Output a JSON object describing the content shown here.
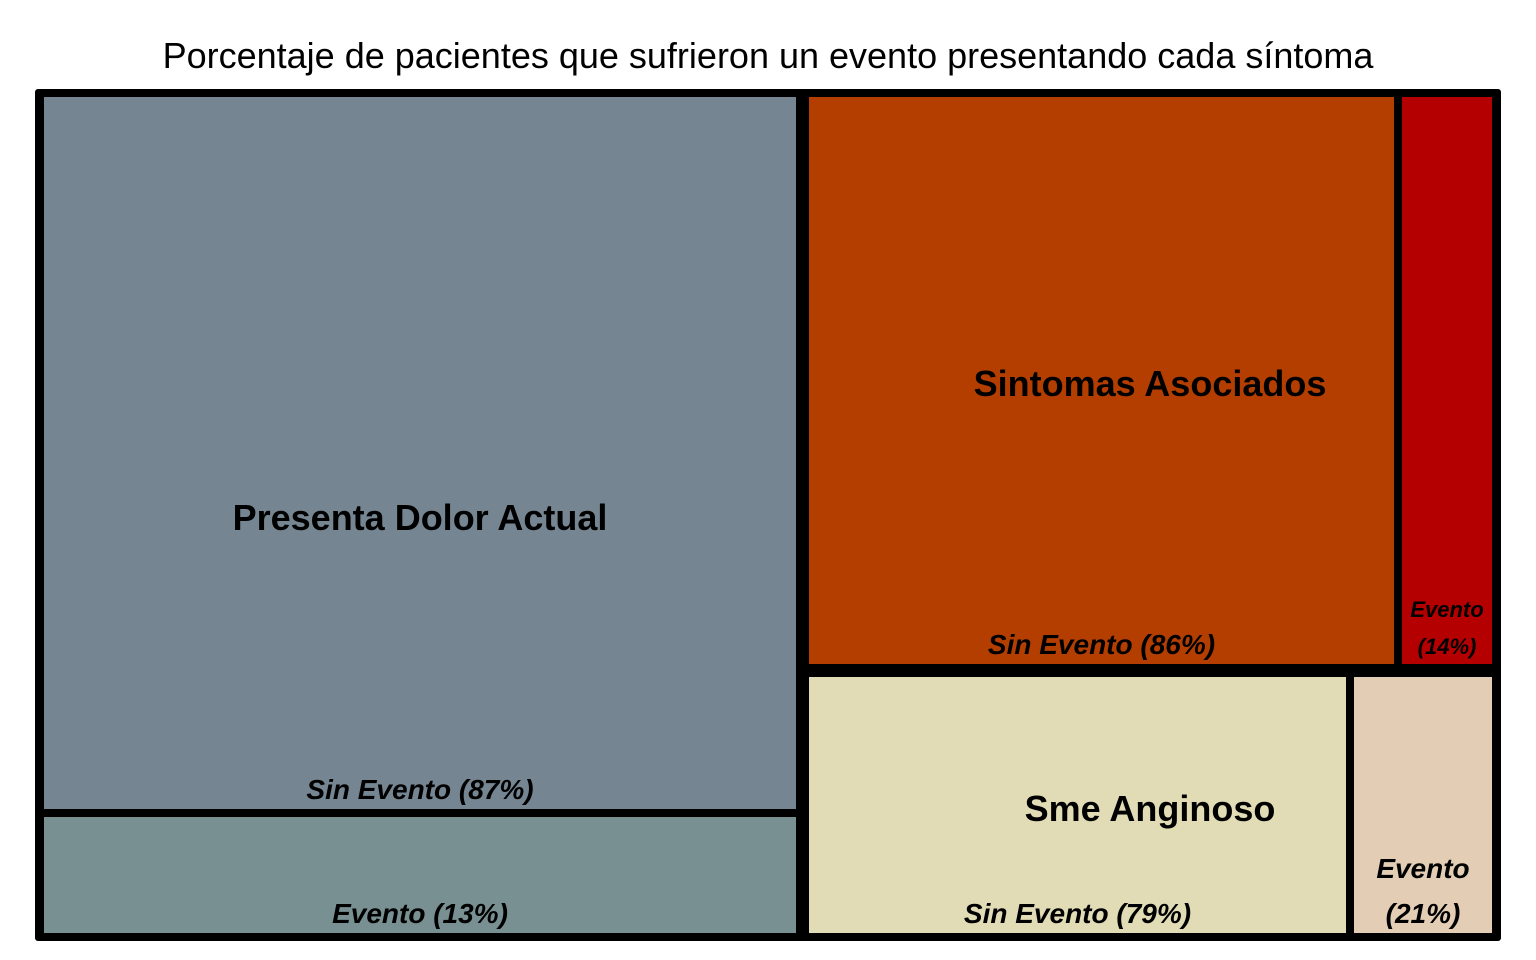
{
  "chart_data": {
    "type": "treemap",
    "title": "Porcentaje de pacientes que sufrieron un evento presentando cada síntoma",
    "groups": [
      {
        "name": "Presenta Dolor Actual",
        "leaves": [
          {
            "label": "Sin Evento (87%)",
            "value": 87,
            "color": "#758692"
          },
          {
            "label": "Evento (13%)",
            "value": 13,
            "color": "#789092"
          }
        ]
      },
      {
        "name": "Sintomas Asociados",
        "leaves": [
          {
            "label": "Sin Evento (86%)",
            "value": 86,
            "color": "#b43e00"
          },
          {
            "label_lines": [
              "Evento",
              "(14%)"
            ],
            "value": 14,
            "color": "#b40000"
          }
        ]
      },
      {
        "name": "Sme Anginoso",
        "leaves": [
          {
            "label": "Sin Evento (79%)",
            "value": 79,
            "color": "#e1dcb5"
          },
          {
            "label_lines": [
              "Evento",
              "(21%)"
            ],
            "value": 21,
            "color": "#e3ceb5"
          }
        ]
      }
    ],
    "border_color": "#000000"
  }
}
